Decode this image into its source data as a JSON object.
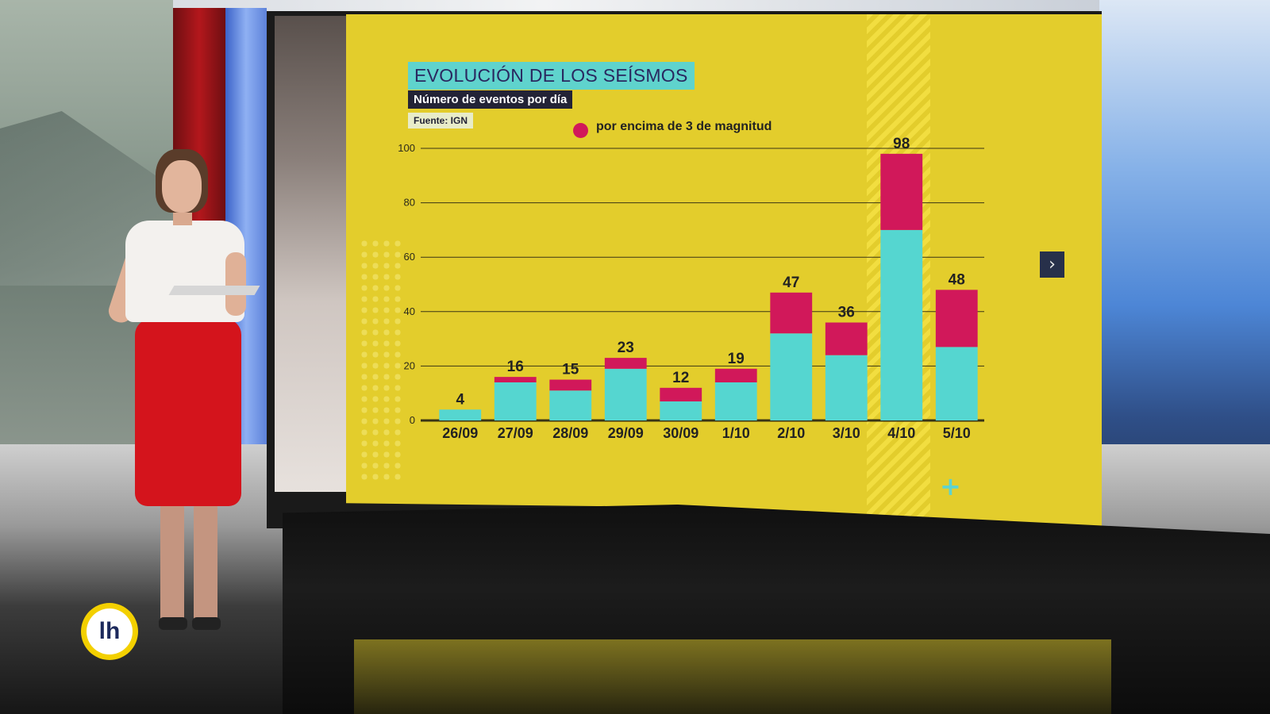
{
  "chart_data": {
    "type": "bar",
    "title": "EVOLUCIÓN DE LOS SEÍSMOS",
    "subtitle": "Número de eventos por día",
    "source": "Fuente: IGN",
    "categories": [
      "26/09",
      "27/09",
      "28/09",
      "29/09",
      "30/09",
      "1/10",
      "2/10",
      "3/10",
      "4/10",
      "5/10"
    ],
    "totals": [
      4,
      16,
      15,
      23,
      12,
      19,
      47,
      36,
      98,
      48
    ],
    "series": [
      {
        "values": [
          4,
          14,
          11,
          19,
          7,
          14,
          32,
          24,
          70,
          27
        ]
      },
      {
        "name": "por encima de 3 de magnitud",
        "values": [
          0,
          2,
          4,
          4,
          5,
          5,
          15,
          12,
          28,
          21
        ]
      }
    ],
    "yticks": [
      0,
      20,
      40,
      60,
      80,
      100
    ],
    "ylim": [
      0,
      100
    ],
    "colors": {
      "base": "#55d6d0",
      "magnitude": "#d1185a",
      "background": "#e3cd2c"
    },
    "grid": true,
    "legend_position": "top"
  },
  "ui": {
    "next_icon": "chevron-right-icon",
    "next_glyph": "›",
    "plus_icon": "plus-icon",
    "plus_glyph": "+",
    "logo_text": "lh"
  }
}
